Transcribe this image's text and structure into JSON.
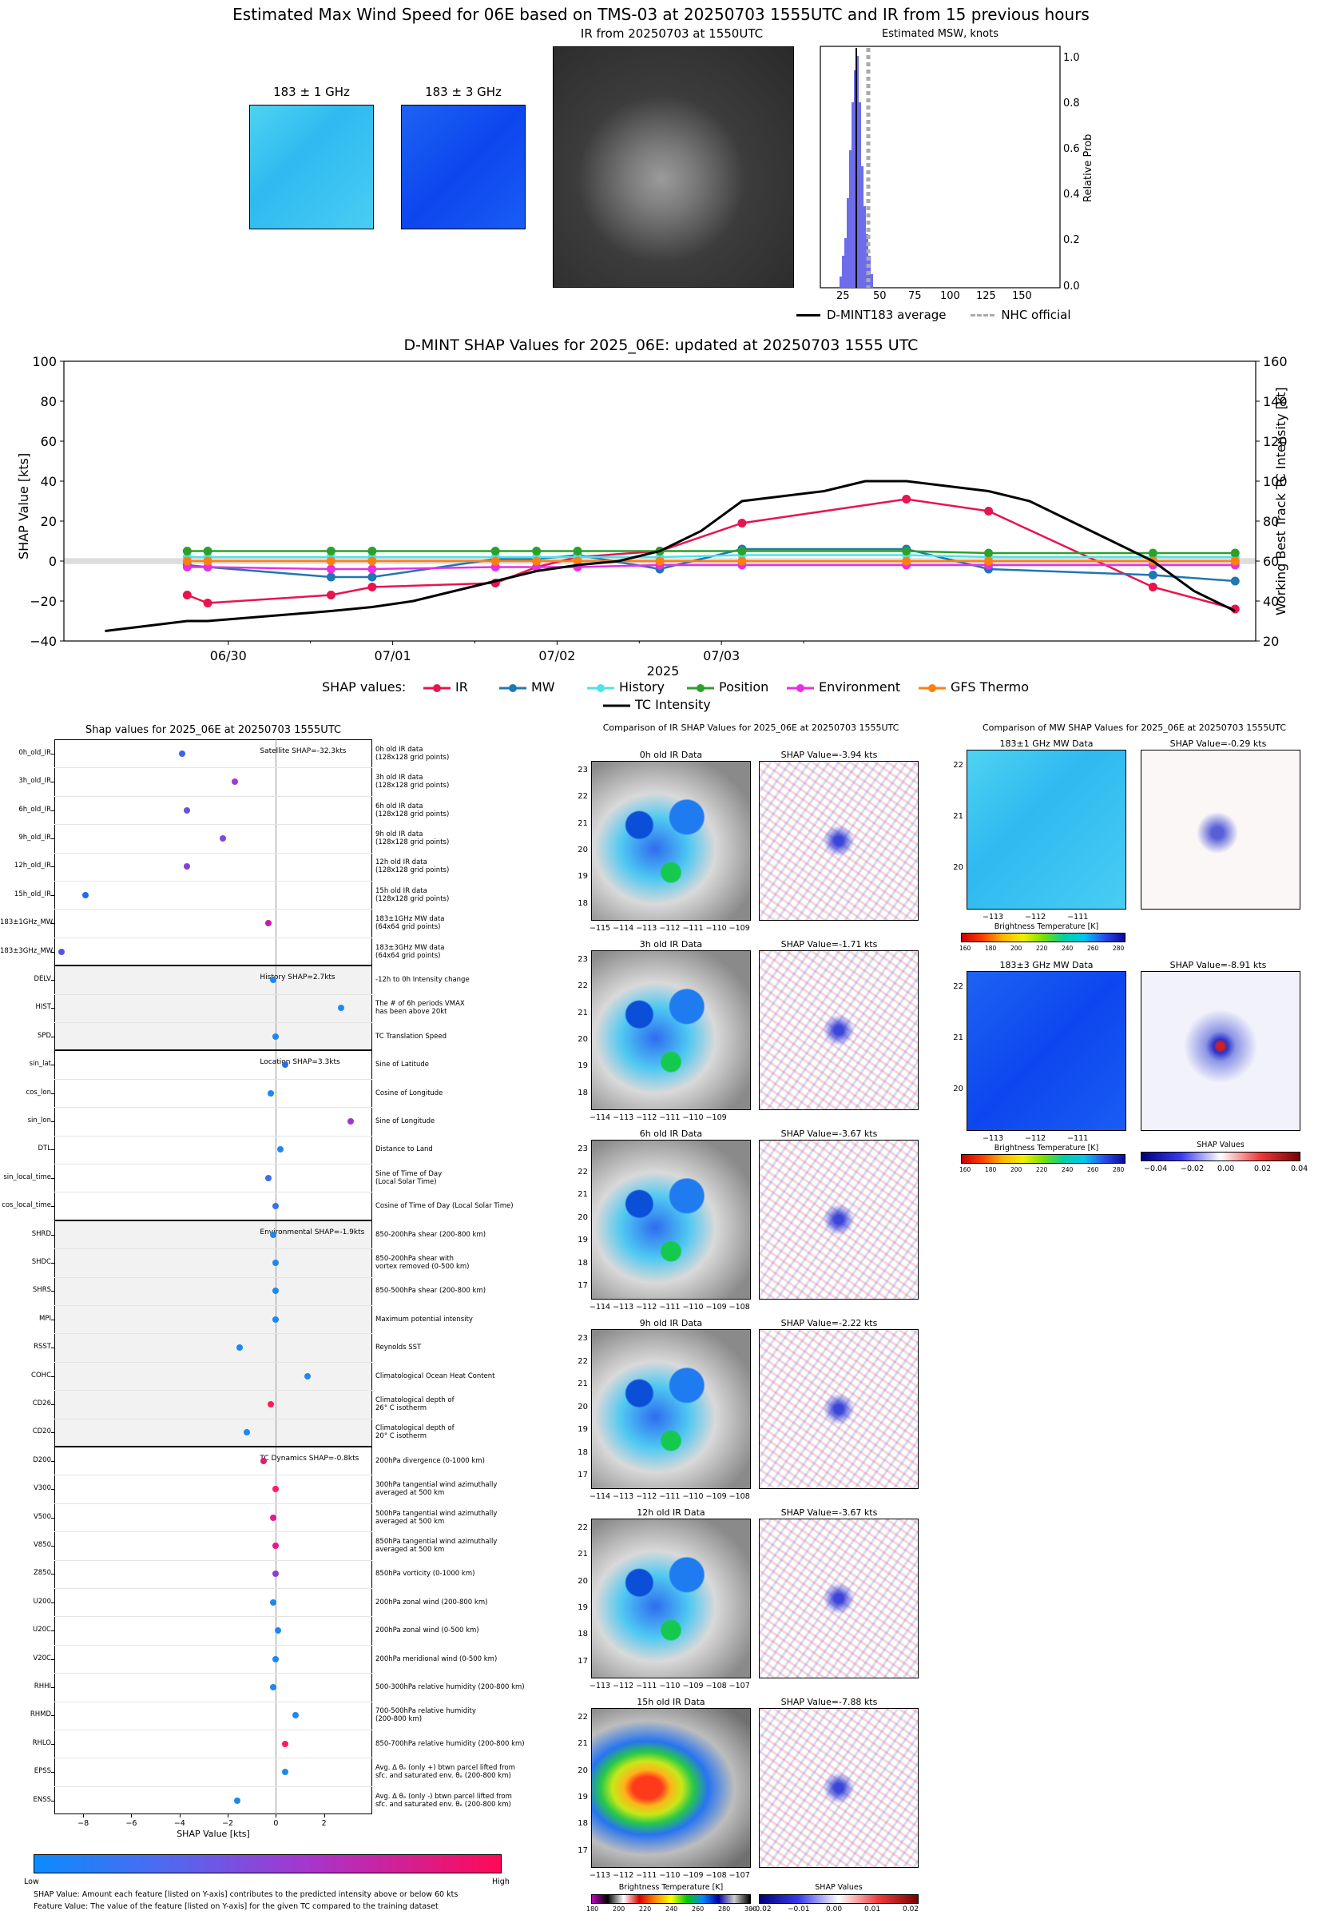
{
  "header": {
    "title": "Estimated Max Wind Speed for 06E based on TMS-03 at 20250703 1555UTC and IR from 15 previous hours",
    "mw1_label": "183 ± 1 GHz",
    "mw3_label": "183 ± 3 GHz",
    "ir_label": "IR from 20250703 at 1550UTC",
    "hist_title": "Estimated MSW, knots",
    "hist_ylabel": "Relative Prob",
    "hist_xticks": [
      "25",
      "50",
      "75",
      "100",
      "125",
      "150"
    ],
    "hist_yticks": [
      "0.0",
      "0.2",
      "0.4",
      "0.6",
      "0.8",
      "1.0"
    ],
    "legend": [
      "D-MINT183 average",
      "NHC official"
    ]
  },
  "chart_data": [
    {
      "type": "line",
      "title": "D-MINT SHAP Values for 2025_06E: updated at 20250703 1555 UTC",
      "xlabel": "2025",
      "ylabel": "SHAP Value [kts]",
      "y2label": "Working Best Track TC Intensity [kt]",
      "ylim": [
        -40,
        100
      ],
      "y2lim": [
        20,
        160
      ],
      "x_ticks": [
        "06/30",
        "07/01",
        "07/02",
        "07/03"
      ],
      "y_ticks": [
        "−40",
        "−20",
        "0",
        "20",
        "40",
        "60",
        "80",
        "100"
      ],
      "y2_ticks": [
        "20",
        "40",
        "60",
        "80",
        "100",
        "120",
        "140",
        "160"
      ],
      "legend_prefix": "SHAP values:",
      "x_hours": [
        -18,
        -6,
        -3,
        15,
        21,
        27,
        39,
        45,
        51,
        57,
        63,
        69,
        75,
        87,
        93,
        99,
        111,
        117,
        123,
        135,
        141,
        147
      ],
      "series": [
        {
          "name": "IR",
          "color": "#e8144f",
          "x": [
            -6,
            -3,
            15,
            21,
            39,
            45,
            51,
            63,
            75,
            99,
            111,
            135,
            147
          ],
          "values": [
            -17,
            -21,
            -17,
            -13,
            -11,
            -3,
            2,
            5,
            19,
            31,
            25,
            -13,
            -24
          ]
        },
        {
          "name": "MW",
          "color": "#1f77b4",
          "x": [
            -6,
            -3,
            15,
            21,
            39,
            45,
            51,
            63,
            75,
            99,
            111,
            135,
            147
          ],
          "values": [
            -2,
            -3,
            -8,
            -8,
            1,
            1,
            3,
            -4,
            6,
            6,
            -4,
            -7,
            -10
          ]
        },
        {
          "name": "History",
          "color": "#4ee3e8",
          "x": [
            -6,
            -3,
            15,
            21,
            39,
            45,
            51,
            63,
            75,
            99,
            111,
            135,
            147
          ],
          "values": [
            2,
            2,
            2,
            2,
            2,
            2,
            2,
            2,
            3,
            3,
            2,
            2,
            2
          ]
        },
        {
          "name": "Position",
          "color": "#2ca02c",
          "x": [
            -6,
            -3,
            15,
            21,
            39,
            45,
            51,
            63,
            75,
            99,
            111,
            135,
            147
          ],
          "values": [
            5,
            5,
            5,
            5,
            5,
            5,
            5,
            5,
            5,
            5,
            4,
            4,
            4
          ]
        },
        {
          "name": "Environment",
          "color": "#e830e0",
          "x": [
            -6,
            -3,
            15,
            21,
            39,
            45,
            51,
            63,
            75,
            99,
            111,
            135,
            147
          ],
          "values": [
            -3,
            -3,
            -4,
            -4,
            -3,
            -3,
            -3,
            -2,
            -2,
            -2,
            -2,
            -2,
            -2
          ]
        },
        {
          "name": "GFS Thermo",
          "color": "#ff7f0e",
          "x": [
            -6,
            -3,
            15,
            21,
            39,
            45,
            51,
            63,
            75,
            99,
            111,
            135,
            147
          ],
          "values": [
            0,
            0,
            0,
            0,
            0,
            0,
            0,
            0,
            0,
            0,
            0,
            0,
            0
          ]
        },
        {
          "name": "TC Intensity",
          "color": "#000000",
          "axis": "right",
          "x": [
            -18,
            -6,
            -3,
            15,
            21,
            27,
            39,
            45,
            51,
            57,
            63,
            69,
            75,
            87,
            93,
            99,
            111,
            117,
            123,
            135,
            141,
            147
          ],
          "values": [
            25,
            30,
            30,
            35,
            37,
            40,
            50,
            55,
            58,
            60,
            65,
            75,
            90,
            95,
            100,
            100,
            95,
            90,
            80,
            60,
            45,
            35
          ]
        }
      ]
    },
    {
      "type": "scatter",
      "title": "Shap values for 2025_06E at 20250703 1555UTC",
      "xlabel": "SHAP Value [kts]",
      "xlim": [
        -9.2,
        4
      ],
      "x_ticks": [
        "−8",
        "−6",
        "−4",
        "−2",
        "0",
        "2"
      ],
      "group_notes": [
        "Satellite SHAP=-32.3kts",
        "History SHAP=2.7kts",
        "Location SHAP=3.3kts",
        "Environmental SHAP=-1.9kts",
        "TC Dynamics SHAP=-0.8kts"
      ],
      "features": [
        {
          "name": "0h_old_IR",
          "shap": -3.9,
          "color": "#3a64ea",
          "desc": "0h old IR data\n(128x128 grid points)"
        },
        {
          "name": "3h_old_IR",
          "shap": -1.7,
          "color": "#a03ad2",
          "desc": "3h old IR data\n(128x128 grid points)"
        },
        {
          "name": "6h_old_IR",
          "shap": -3.7,
          "color": "#6a50da",
          "desc": "6h old IR data\n(128x128 grid points)"
        },
        {
          "name": "9h_old_IR",
          "shap": -2.2,
          "color": "#7a4cda",
          "desc": "9h old IR data\n(128x128 grid points)"
        },
        {
          "name": "12h_old_IR",
          "shap": -3.7,
          "color": "#8042d6",
          "desc": "12h old IR data\n(128x128 grid points)"
        },
        {
          "name": "15h_old_IR",
          "shap": -7.9,
          "color": "#1f6cee",
          "desc": "15h old IR data\n(128x128 grid points)"
        },
        {
          "name": "183±1GHz_MW",
          "shap": -0.3,
          "color": "#c81aa8",
          "desc": "183±1GHz MW data\n(64x64 grid points)"
        },
        {
          "name": "183±3GHz_MW",
          "shap": -8.9,
          "color": "#5a52dc",
          "desc": "183±3GHz MW data\n(64x64 grid points)"
        },
        {
          "name": "DELV",
          "shap": -0.1,
          "color": "#1e88f0",
          "desc": "-12h to 0h Intensity change"
        },
        {
          "name": "HIST",
          "shap": 2.7,
          "color": "#1e88f0",
          "desc": "The # of 6h periods VMAX\nhas been above 20kt"
        },
        {
          "name": "SPD",
          "shap": 0.0,
          "color": "#1e88f0",
          "desc": "TC Translation Speed"
        },
        {
          "name": "sin_lat",
          "shap": 0.4,
          "color": "#2a6ce6",
          "desc": "Sine of Latitude"
        },
        {
          "name": "cos_lon",
          "shap": -0.2,
          "color": "#1e88f0",
          "desc": "Cosine of Longitude"
        },
        {
          "name": "sin_lon",
          "shap": 3.1,
          "color": "#9a38d0",
          "desc": "Sine of Longitude"
        },
        {
          "name": "DTL",
          "shap": 0.2,
          "color": "#1e88f0",
          "desc": "Distance to Land"
        },
        {
          "name": "sin_local_time",
          "shap": -0.3,
          "color": "#3a70ea",
          "desc": "Sine of Time of Day\n(Local Solar Time)"
        },
        {
          "name": "cos_local_time",
          "shap": 0.0,
          "color": "#3a70ea",
          "desc": "Cosine of Time of Day (Local Solar Time)"
        },
        {
          "name": "SHRD",
          "shap": -0.1,
          "color": "#1e88f0",
          "desc": "850-200hPa shear (200-800 km)"
        },
        {
          "name": "SHDC",
          "shap": 0.0,
          "color": "#1e88f0",
          "desc": "850-200hPa shear with\nvortex removed (0-500 km)"
        },
        {
          "name": "SHRS",
          "shap": 0.0,
          "color": "#1e88f0",
          "desc": "850-500hPa shear (200-800 km)"
        },
        {
          "name": "MPI",
          "shap": 0.0,
          "color": "#1e88f0",
          "desc": "Maximum potential intensity"
        },
        {
          "name": "RSST",
          "shap": -1.5,
          "color": "#1e88f0",
          "desc": "Reynolds SST"
        },
        {
          "name": "COHC",
          "shap": 1.3,
          "color": "#1e88f0",
          "desc": "Climatological Ocean Heat Content"
        },
        {
          "name": "CD26",
          "shap": -0.2,
          "color": "#ff1a5a",
          "desc": "Climatological depth of\n26° C isotherm"
        },
        {
          "name": "CD20",
          "shap": -1.2,
          "color": "#1e88f0",
          "desc": "Climatological depth of\n20° C isotherm"
        },
        {
          "name": "D200",
          "shap": -0.5,
          "color": "#e41a6e",
          "desc": "200hPa divergence (0-1000 km)"
        },
        {
          "name": "V300",
          "shap": 0.0,
          "color": "#ff1a6a",
          "desc": "300hPa tangential wind azimuthally\naveraged at 500 km"
        },
        {
          "name": "V500",
          "shap": -0.1,
          "color": "#e21a8a",
          "desc": "500hPa tangential wind azimuthally\naveraged at 500 km"
        },
        {
          "name": "V850",
          "shap": 0.0,
          "color": "#e21a8a",
          "desc": "850hPa tangential wind azimuthally\naveraged at 500 km"
        },
        {
          "name": "Z850",
          "shap": 0.0,
          "color": "#8a40d4",
          "desc": "850hPa vorticity (0-1000 km)"
        },
        {
          "name": "U200",
          "shap": -0.1,
          "color": "#1e88f0",
          "desc": "200hPa zonal wind (200-800 km)"
        },
        {
          "name": "U20C",
          "shap": 0.1,
          "color": "#1e88f0",
          "desc": "200hPa zonal wind (0-500 km)"
        },
        {
          "name": "V20C",
          "shap": 0.0,
          "color": "#1e88f0",
          "desc": "200hPa meridional wind (0-500 km)"
        },
        {
          "name": "RHHI",
          "shap": -0.1,
          "color": "#1e88f0",
          "desc": "500-300hPa relative humidity (200-800 km)"
        },
        {
          "name": "RHMD",
          "shap": 0.8,
          "color": "#1e88f0",
          "desc": "700-500hPa relative humidity\n(200-800 km)"
        },
        {
          "name": "RHLO",
          "shap": 0.4,
          "color": "#ff1a5a",
          "desc": "850-700hPa relative humidity (200-800 km)"
        },
        {
          "name": "EPSS",
          "shap": 0.4,
          "color": "#1e88f0",
          "desc": "Avg. Δ θₑ (only +) btwn parcel lifted from\nsfc. and saturated env. θₑ (200-800 km)"
        },
        {
          "name": "ENSS",
          "shap": -1.6,
          "color": "#1e88f0",
          "desc": "Avg. Δ θₑ (only -) btwn parcel lifted from\nsfc. and saturated env. θₑ (200-800 km)"
        }
      ]
    }
  ],
  "colorbar": {
    "low": "Low",
    "high": "High"
  },
  "footnotes": [
    "SHAP Value: Amount each feature [listed on Y-axis] contributes to the predicted intensity above or below 60 kts",
    "Feature Value: The value of the feature [listed on Y-axis] for the given TC compared to the training dataset"
  ],
  "ir_panel": {
    "title": "Comparison of IR SHAP Values for 2025_06E at 20250703 1555UTC",
    "rows": [
      {
        "label": "0h old IR Data",
        "shap": "SHAP Value=-3.94 kts",
        "yticks": [
          "23",
          "22",
          "21",
          "20",
          "19",
          "18"
        ],
        "xticks": "−115 −114 −113 −112 −111 −110 −109"
      },
      {
        "label": "3h old IR Data",
        "shap": "SHAP Value=-1.71 kts",
        "yticks": [
          "23",
          "22",
          "21",
          "20",
          "19",
          "18"
        ],
        "xticks": "−114 −113 −112 −111 −110 −109"
      },
      {
        "label": "6h old IR Data",
        "shap": "SHAP Value=-3.67 kts",
        "yticks": [
          "23",
          "22",
          "21",
          "20",
          "19",
          "18",
          "17"
        ],
        "xticks": "−114 −113 −112 −111 −110 −109 −108"
      },
      {
        "label": "9h old IR Data",
        "shap": "SHAP Value=-2.22 kts",
        "yticks": [
          "23",
          "22",
          "21",
          "20",
          "19",
          "18",
          "17"
        ],
        "xticks": "−114 −113 −112 −111 −110 −109 −108"
      },
      {
        "label": "12h old IR Data",
        "shap": "SHAP Value=-3.67 kts",
        "yticks": [
          "22",
          "21",
          "20",
          "19",
          "18",
          "17"
        ],
        "xticks": "−113 −112 −111 −110 −109 −108 −107"
      },
      {
        "label": "15h old IR Data",
        "shap": "SHAP Value=-7.88 kts",
        "yticks": [
          "22",
          "21",
          "20",
          "19",
          "18",
          "17"
        ],
        "xticks": "−113 −112 −111 −110 −109 −108 −107"
      }
    ],
    "bt_label": "Brightness Temperature [K]",
    "bt_ticks": [
      "180",
      "200",
      "220",
      "240",
      "260",
      "280",
      "300"
    ],
    "shap_label": "SHAP Values",
    "shap_ticks": [
      "−0.02",
      "−0.01",
      "0.00",
      "0.01",
      "0.02"
    ]
  },
  "mw_panel": {
    "title": "Comparison of MW SHAP Values for 2025_06E at 20250703 1555UTC",
    "rows": [
      {
        "label": "183±1 GHz MW Data",
        "shap": "SHAP Value=-0.29 kts",
        "yticks": [
          "22",
          "21",
          "20"
        ],
        "xticks": "−113 −112 −111"
      },
      {
        "label": "183±3 GHz MW Data",
        "shap": "SHAP Value=-8.91 kts",
        "yticks": [
          "22",
          "21",
          "20"
        ],
        "xticks": "−113 −112 −111"
      }
    ],
    "bt_label": "Brightness Temperature [K]",
    "bt_ticks": [
      "160",
      "180",
      "200",
      "220",
      "240",
      "260",
      "280"
    ],
    "shap_label": "SHAP Values",
    "shap_ticks": [
      "−0.04",
      "−0.02",
      "0.00",
      "0.02",
      "0.04"
    ]
  },
  "colors": {
    "accent": "#e8144f",
    "blue": "#1f77b4",
    "cbar_low": "#0a8cff",
    "cbar_high": "#ff0a55"
  }
}
